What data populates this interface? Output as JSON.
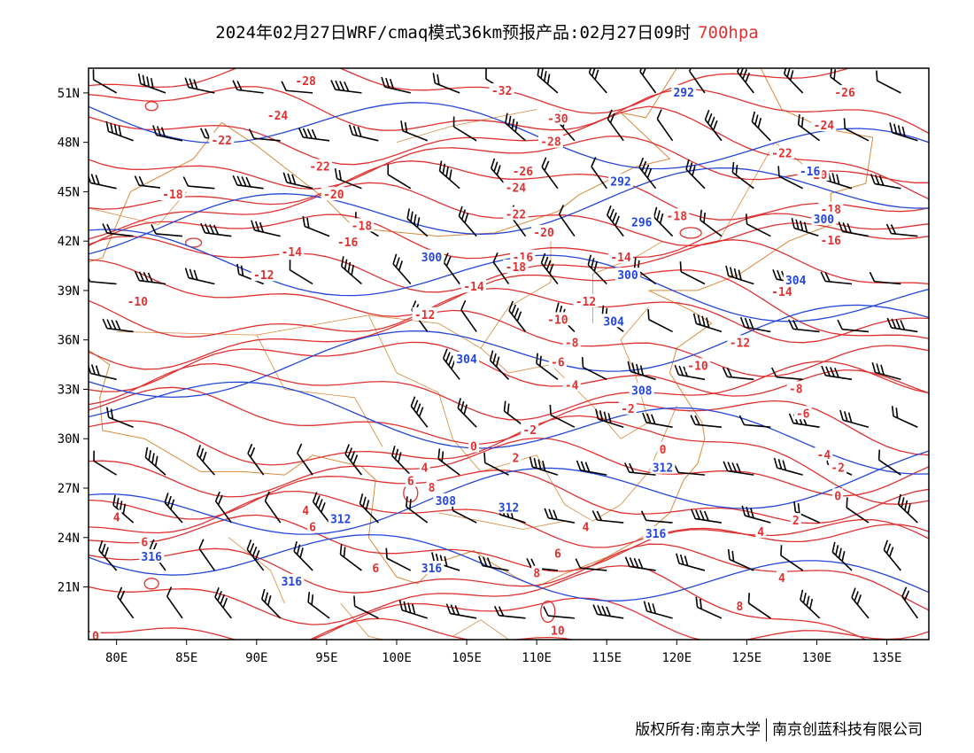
{
  "title": {
    "main": "2024年02月27日WRF/cmaq模式36km预报产品:02月27日09时",
    "level": "700hpa"
  },
  "footer": {
    "owner_left": "版权所有:南京大学",
    "owner_right": "南京创蓝科技有限公司"
  },
  "colors": {
    "temperature": "#e03131",
    "height": "#2446d8",
    "border": "#d8893a",
    "wind": "#000000"
  },
  "axes": {
    "lon_labels": [
      "80E",
      "85E",
      "90E",
      "95E",
      "100E",
      "105E",
      "110E",
      "115E",
      "120E",
      "125E",
      "130E",
      "135E"
    ],
    "lat_labels": [
      "51N",
      "48N",
      "45N",
      "42N",
      "39N",
      "36N",
      "33N",
      "30N",
      "27N",
      "24N",
      "21N"
    ],
    "lon_range": [
      78,
      138
    ],
    "lat_range": [
      17.8,
      52.5
    ]
  },
  "contours": {
    "temperature_labels": [
      {
        "text": "-28",
        "lon": 93.5,
        "lat": 51.7
      },
      {
        "text": "-24",
        "lon": 91.5,
        "lat": 49.6
      },
      {
        "text": "-22",
        "lon": 87.5,
        "lat": 48.1
      },
      {
        "text": "-22",
        "lon": 94.5,
        "lat": 46.5
      },
      {
        "text": "-18",
        "lon": 84.0,
        "lat": 44.8
      },
      {
        "text": "-20",
        "lon": 95.5,
        "lat": 44.8
      },
      {
        "text": "-18",
        "lon": 97.5,
        "lat": 42.9
      },
      {
        "text": "-16",
        "lon": 96.5,
        "lat": 41.9
      },
      {
        "text": "-14",
        "lon": 92.5,
        "lat": 41.3
      },
      {
        "text": "-12",
        "lon": 90.5,
        "lat": 39.9
      },
      {
        "text": "-10",
        "lon": 81.5,
        "lat": 38.3
      },
      {
        "text": "-32",
        "lon": 107.5,
        "lat": 51.1
      },
      {
        "text": "-30",
        "lon": 111.5,
        "lat": 49.4
      },
      {
        "text": "-28",
        "lon": 111.0,
        "lat": 48.0
      },
      {
        "text": "-26",
        "lon": 109.0,
        "lat": 46.2
      },
      {
        "text": "-24",
        "lon": 108.5,
        "lat": 45.2
      },
      {
        "text": "-22",
        "lon": 108.5,
        "lat": 43.6
      },
      {
        "text": "-20",
        "lon": 110.5,
        "lat": 42.5
      },
      {
        "text": "-16",
        "lon": 109.0,
        "lat": 41.0
      },
      {
        "text": "-18",
        "lon": 108.5,
        "lat": 40.4
      },
      {
        "text": "-14",
        "lon": 116.0,
        "lat": 41.0
      },
      {
        "text": "-14",
        "lon": 105.5,
        "lat": 39.2
      },
      {
        "text": "-12",
        "lon": 113.5,
        "lat": 38.3
      },
      {
        "text": "-12",
        "lon": 102.0,
        "lat": 37.5
      },
      {
        "text": "-10",
        "lon": 111.5,
        "lat": 37.2
      },
      {
        "text": "-8",
        "lon": 112.5,
        "lat": 35.8
      },
      {
        "text": "-6",
        "lon": 111.5,
        "lat": 34.6
      },
      {
        "text": "-4",
        "lon": 112.5,
        "lat": 33.2
      },
      {
        "text": "-2",
        "lon": 116.5,
        "lat": 31.8
      },
      {
        "text": "-2",
        "lon": 109.5,
        "lat": 30.5
      },
      {
        "text": "0",
        "lon": 105.5,
        "lat": 29.5
      },
      {
        "text": "2",
        "lon": 108.5,
        "lat": 28.8
      },
      {
        "text": "0",
        "lon": 119.0,
        "lat": 29.3
      },
      {
        "text": "4",
        "lon": 102.0,
        "lat": 28.2
      },
      {
        "text": "6",
        "lon": 101.0,
        "lat": 27.4
      },
      {
        "text": "8",
        "lon": 102.5,
        "lat": 27.0
      },
      {
        "text": "4",
        "lon": 93.5,
        "lat": 25.6
      },
      {
        "text": "6",
        "lon": 94.0,
        "lat": 24.6
      },
      {
        "text": "4",
        "lon": 80.0,
        "lat": 25.2
      },
      {
        "text": "6",
        "lon": 82.0,
        "lat": 23.7
      },
      {
        "text": "6",
        "lon": 98.5,
        "lat": 22.1
      },
      {
        "text": "4",
        "lon": 113.5,
        "lat": 24.6
      },
      {
        "text": "6",
        "lon": 111.5,
        "lat": 23.0
      },
      {
        "text": "8",
        "lon": 110.0,
        "lat": 21.8
      },
      {
        "text": "10",
        "lon": 111.5,
        "lat": 18.3
      },
      {
        "text": "8",
        "lon": 124.5,
        "lat": 19.8
      },
      {
        "text": "0",
        "lon": 78.5,
        "lat": 18.0
      },
      {
        "text": "-18",
        "lon": 120.0,
        "lat": 43.5
      },
      {
        "text": "-26",
        "lon": 132.0,
        "lat": 51.0
      },
      {
        "text": "-24",
        "lon": 130.5,
        "lat": 49.0
      },
      {
        "text": "-22",
        "lon": 127.5,
        "lat": 47.3
      },
      {
        "text": "-20",
        "lon": 130.0,
        "lat": 46.0
      },
      {
        "text": "-18",
        "lon": 131.0,
        "lat": 43.9
      },
      {
        "text": "-16",
        "lon": 131.0,
        "lat": 42.0
      },
      {
        "text": "-14",
        "lon": 127.5,
        "lat": 38.9
      },
      {
        "text": "-12",
        "lon": 124.5,
        "lat": 35.8
      },
      {
        "text": "-10",
        "lon": 121.5,
        "lat": 34.4
      },
      {
        "text": "-8",
        "lon": 128.5,
        "lat": 33.0
      },
      {
        "text": "-6",
        "lon": 129.0,
        "lat": 31.5
      },
      {
        "text": "-4",
        "lon": 130.5,
        "lat": 29.0
      },
      {
        "text": "-2",
        "lon": 131.5,
        "lat": 28.2
      },
      {
        "text": "0",
        "lon": 131.5,
        "lat": 26.5
      },
      {
        "text": "2",
        "lon": 128.5,
        "lat": 25.0
      },
      {
        "text": "4",
        "lon": 126.0,
        "lat": 24.3
      },
      {
        "text": "4",
        "lon": 127.5,
        "lat": 21.5
      }
    ],
    "height_labels": [
      {
        "text": "292",
        "lon": 120.5,
        "lat": 51.0
      },
      {
        "text": "292",
        "lon": 116.0,
        "lat": 45.6
      },
      {
        "text": "296",
        "lon": 117.5,
        "lat": 43.1
      },
      {
        "text": "300",
        "lon": 102.5,
        "lat": 41.0
      },
      {
        "text": "300",
        "lon": 116.5,
        "lat": 39.9
      },
      {
        "text": "300",
        "lon": 130.5,
        "lat": 43.3
      },
      {
        "text": "304",
        "lon": 115.5,
        "lat": 37.1
      },
      {
        "text": "304",
        "lon": 105.0,
        "lat": 34.8
      },
      {
        "text": "304",
        "lon": 128.5,
        "lat": 39.6
      },
      {
        "text": "308",
        "lon": 117.5,
        "lat": 32.9
      },
      {
        "text": "308",
        "lon": 103.5,
        "lat": 26.2
      },
      {
        "text": "312",
        "lon": 96.0,
        "lat": 25.1
      },
      {
        "text": "312",
        "lon": 108.0,
        "lat": 25.8
      },
      {
        "text": "312",
        "lon": 119.0,
        "lat": 28.2
      },
      {
        "text": "316",
        "lon": 82.5,
        "lat": 22.8
      },
      {
        "text": "316",
        "lon": 92.5,
        "lat": 21.3
      },
      {
        "text": "316",
        "lon": 102.5,
        "lat": 22.1
      },
      {
        "text": "316",
        "lon": 118.5,
        "lat": 24.2
      },
      {
        "text": "-16",
        "lon": 129.5,
        "lat": 46.2
      }
    ]
  }
}
